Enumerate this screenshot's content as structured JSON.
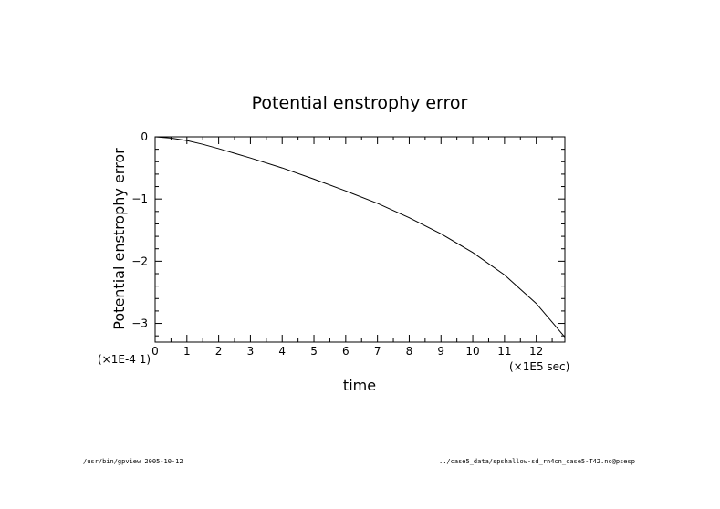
{
  "chart_data": {
    "type": "line",
    "title": "Potential enstrophy error",
    "xlabel": "time",
    "ylabel": "Potential enstrophy error",
    "x_unit": "(×1E5 sec)",
    "y_unit": "(×1E-4 1)",
    "xlim": [
      0,
      12.9
    ],
    "ylim": [
      -3.3,
      0
    ],
    "x_ticks": [
      0,
      1,
      2,
      3,
      4,
      5,
      6,
      7,
      8,
      9,
      10,
      11,
      12
    ],
    "y_ticks": [
      0,
      -1,
      -2,
      -3
    ],
    "grid": false,
    "series": [
      {
        "values_x": [
          0,
          0.5,
          1,
          1.5,
          2,
          3,
          4,
          5,
          6,
          7,
          8,
          9,
          10,
          11,
          12,
          12.9
        ],
        "values_y": [
          0,
          -0.02,
          -0.06,
          -0.12,
          -0.19,
          -0.34,
          -0.5,
          -0.68,
          -0.87,
          -1.07,
          -1.3,
          -1.56,
          -1.86,
          -2.22,
          -2.68,
          -3.22
        ]
      }
    ]
  },
  "footer": {
    "left": "/usr/bin/gpview  2005-10-12",
    "right": "../case5_data/spshallow-sd_rn4cn_case5-T42.nc@psesp"
  }
}
